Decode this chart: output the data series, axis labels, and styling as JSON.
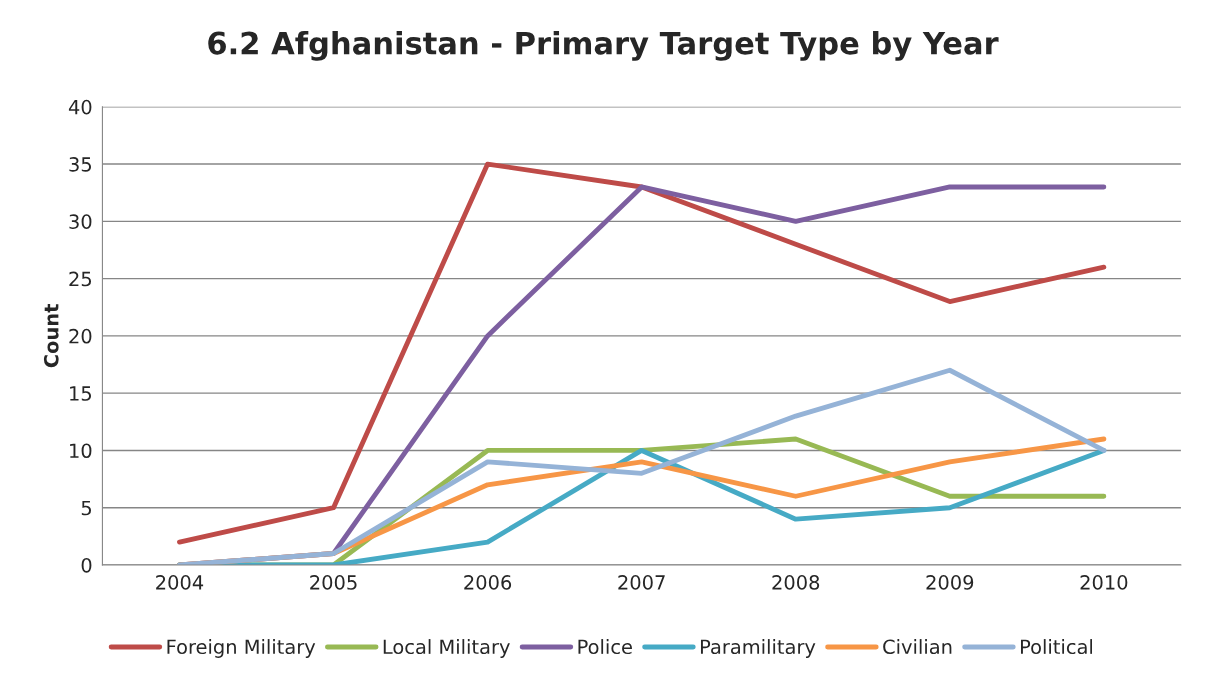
{
  "chart_data": {
    "type": "line",
    "title": "6.2 Afghanistan - Primary Target Type by Year",
    "ylabel": "Count",
    "categories": [
      "2004",
      "2005",
      "2006",
      "2007",
      "2008",
      "2009",
      "2010"
    ],
    "series": [
      {
        "name": "Foreign Military",
        "color": "#be4b48",
        "values": [
          2,
          5,
          35,
          33,
          28,
          23,
          26
        ]
      },
      {
        "name": "Local Military",
        "color": "#98b954",
        "values": [
          0,
          0,
          10,
          10,
          11,
          6,
          6
        ]
      },
      {
        "name": "Police",
        "color": "#7d5fa0",
        "values": [
          0,
          1,
          20,
          33,
          30,
          33,
          33
        ]
      },
      {
        "name": "Paramilitary",
        "color": "#46aac5",
        "values": [
          0,
          0,
          2,
          10,
          4,
          5,
          10
        ]
      },
      {
        "name": "Civilian",
        "color": "#f79646",
        "values": [
          0,
          1,
          7,
          9,
          6,
          9,
          11
        ]
      },
      {
        "name": "Political",
        "color": "#95b3d7",
        "values": [
          0,
          1,
          9,
          8,
          13,
          17,
          10
        ]
      }
    ],
    "ylim": [
      0,
      40
    ],
    "yticks": [
      0,
      5,
      10,
      15,
      20,
      25,
      30,
      35,
      40
    ],
    "grid": "y",
    "legend": "bottom",
    "marker": "none",
    "line_style": "solid"
  }
}
